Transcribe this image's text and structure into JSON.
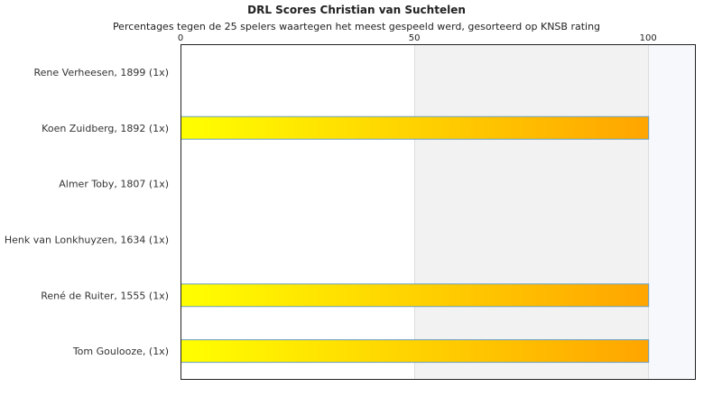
{
  "chart_data": {
    "type": "bar",
    "orientation": "horizontal",
    "title": "DRL Scores Christian van Suchtelen",
    "subtitle": "Percentages tegen de 25 spelers waartegen het meest gespeeld werd, gesorteerd op KNSB rating",
    "xlim": [
      0,
      110
    ],
    "xticks": [
      0,
      50,
      100
    ],
    "xtick_labels": [
      "0",
      "50",
      "100"
    ],
    "x_axis_position": "top",
    "categories": [
      "Rene Verheesen, 1899 (1x)",
      "Koen Zuidberg, 1892 (1x)",
      "Almer Toby, 1807 (1x)",
      "Henk van Lonkhuyzen, 1634 (1x)",
      "René de Ruiter, 1555 (1x)",
      "Tom Goulooze,  (1x)"
    ],
    "values": [
      0,
      100,
      0,
      0,
      100,
      100
    ],
    "bar_gradient": [
      "#ffff00",
      "#ffa500"
    ],
    "bar_border_color": "#6a9fc0",
    "plot_bands": [
      "#ffffff",
      "#f2f2f2",
      "#f7f8fc"
    ]
  }
}
